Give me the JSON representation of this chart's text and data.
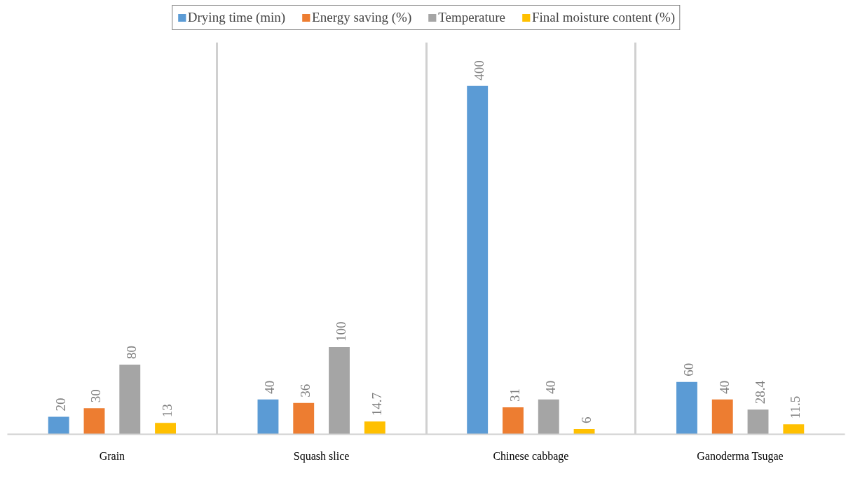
{
  "chart_data": {
    "type": "bar",
    "categories": [
      "Grain",
      "Squash slice",
      "Chinese cabbage",
      "Ganoderma Tsugae"
    ],
    "series": [
      {
        "name": "Drying time (min)",
        "color": "#5b9bd5",
        "values": [
          20,
          40,
          400,
          60
        ]
      },
      {
        "name": "Energy saving (%)",
        "color": "#ed7d31",
        "values": [
          30,
          36,
          31,
          40
        ]
      },
      {
        "name": "Temperature",
        "color": "#a5a5a5",
        "values": [
          80,
          100,
          40,
          28.4
        ]
      },
      {
        "name": "Final moisture content (%)",
        "color": "#ffc000",
        "values": [
          13,
          14.7,
          6,
          11.5
        ]
      }
    ],
    "ylim": [
      0,
      450
    ],
    "tick_labels": "x",
    "grid": "x",
    "legend": "top",
    "data_labels": true
  }
}
